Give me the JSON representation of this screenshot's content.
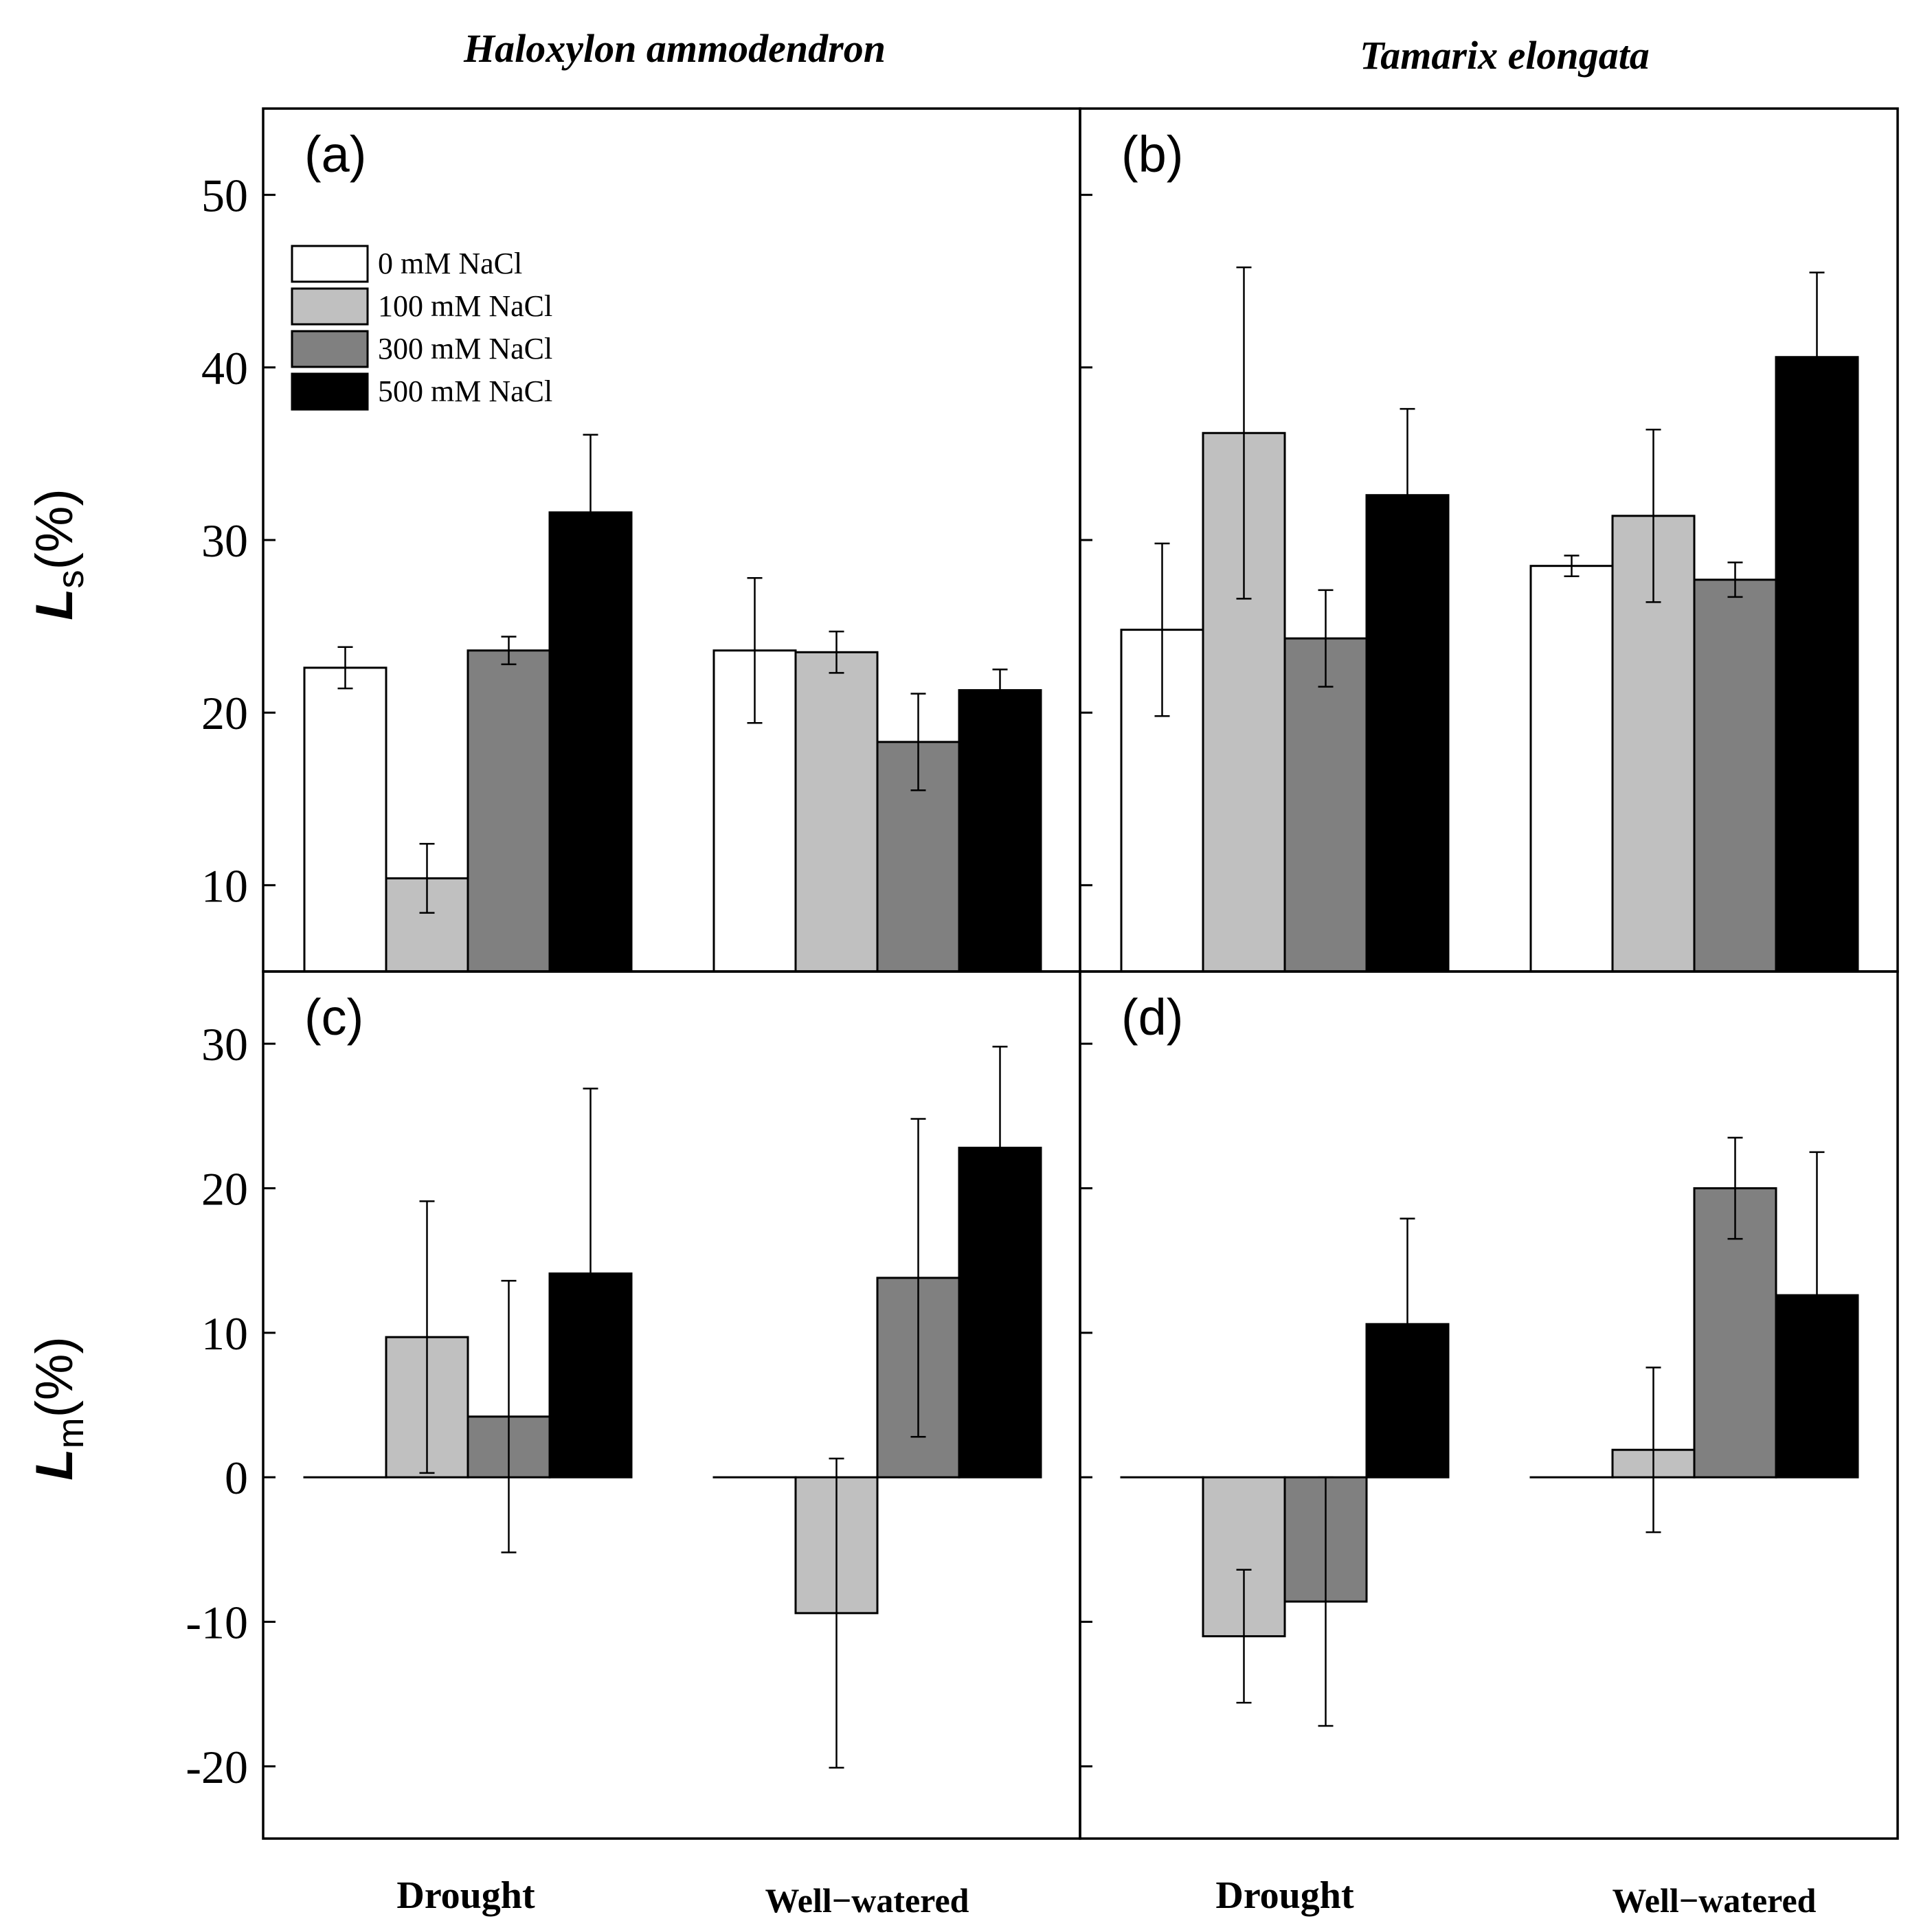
{
  "chart_data": [
    {
      "panel_label": "(a)",
      "type": "bar",
      "column_title": "Haloxylon ammodendron",
      "ylabel": {
        "main": "L",
        "sub": "s",
        "suffix": "(%)"
      },
      "ylim": [
        5,
        55
      ],
      "yticks": [
        10,
        20,
        30,
        40,
        50
      ],
      "categories": [
        "Drought",
        "Well−watered"
      ],
      "series": [
        {
          "name": "0 mM NaCl",
          "color": "#ffffff",
          "values": [
            22.6,
            23.6
          ],
          "errors": [
            1.2,
            4.2
          ]
        },
        {
          "name": "100 mM NaCl",
          "color": "#c0c0c0",
          "values": [
            10.4,
            23.5
          ],
          "errors": [
            2.0,
            1.2
          ]
        },
        {
          "name": "300 mM NaCl",
          "color": "#808080",
          "values": [
            23.6,
            18.3
          ],
          "errors": [
            0.8,
            2.8
          ]
        },
        {
          "name": "500 mM NaCl",
          "color": "#000000",
          "values": [
            31.6,
            21.3
          ],
          "errors": [
            4.5,
            1.2
          ]
        }
      ]
    },
    {
      "panel_label": "(b)",
      "type": "bar",
      "column_title": "Tamarix elongata",
      "ylim": [
        5,
        55
      ],
      "yticks": [
        10,
        20,
        30,
        40,
        50
      ],
      "categories": [
        "Drought",
        "Well−watered"
      ],
      "series": [
        {
          "name": "0 mM NaCl",
          "color": "#ffffff",
          "values": [
            24.8,
            28.5
          ],
          "errors": [
            5.0,
            0.6
          ]
        },
        {
          "name": "100 mM NaCl",
          "color": "#c0c0c0",
          "values": [
            36.2,
            31.4
          ],
          "errors": [
            9.6,
            5.0
          ]
        },
        {
          "name": "300 mM NaCl",
          "color": "#808080",
          "values": [
            24.3,
            27.7
          ],
          "errors": [
            2.8,
            1.0
          ]
        },
        {
          "name": "500 mM NaCl",
          "color": "#000000",
          "values": [
            32.6,
            40.6
          ],
          "errors": [
            5.0,
            4.9
          ]
        }
      ]
    },
    {
      "panel_label": "(c)",
      "type": "bar",
      "ylabel": {
        "main": "L",
        "sub": "m",
        "suffix": "(%)"
      },
      "ylim": [
        -25,
        35
      ],
      "yticks": [
        -20,
        -10,
        0,
        10,
        20,
        30
      ],
      "categories": [
        "Drought",
        "Well−watered"
      ],
      "series": [
        {
          "name": "0 mM NaCl",
          "color": "#ffffff",
          "values": [
            0,
            0
          ],
          "errors": [
            0,
            0
          ]
        },
        {
          "name": "100 mM NaCl",
          "color": "#c0c0c0",
          "values": [
            9.7,
            -9.4
          ],
          "errors": [
            9.4,
            10.7
          ]
        },
        {
          "name": "300 mM NaCl",
          "color": "#808080",
          "values": [
            4.2,
            13.8
          ],
          "errors": [
            9.4,
            11.0
          ]
        },
        {
          "name": "500 mM NaCl",
          "color": "#000000",
          "values": [
            14.1,
            22.8
          ],
          "errors": [
            12.8,
            7.0
          ]
        }
      ]
    },
    {
      "panel_label": "(d)",
      "type": "bar",
      "ylim": [
        -25,
        35
      ],
      "yticks": [
        -20,
        -10,
        0,
        10,
        20,
        30
      ],
      "categories": [
        "Drought",
        "Well−watered"
      ],
      "series": [
        {
          "name": "0 mM NaCl",
          "color": "#ffffff",
          "values": [
            0,
            0
          ],
          "errors": [
            0,
            0
          ]
        },
        {
          "name": "100 mM NaCl",
          "color": "#c0c0c0",
          "values": [
            -11.0,
            1.9
          ],
          "errors": [
            4.6,
            5.7
          ]
        },
        {
          "name": "300 mM NaCl",
          "color": "#808080",
          "values": [
            -8.6,
            20.0
          ],
          "errors": [
            8.6,
            3.5
          ]
        },
        {
          "name": "500 mM NaCl",
          "color": "#000000",
          "values": [
            10.6,
            12.6
          ],
          "errors": [
            7.3,
            9.9
          ]
        }
      ]
    }
  ],
  "legend": {
    "placement": "top-left of panel (a)",
    "entries": [
      "0 mM NaCl",
      "100 mM NaCl",
      "300 mM NaCl",
      "500 mM NaCl"
    ]
  }
}
